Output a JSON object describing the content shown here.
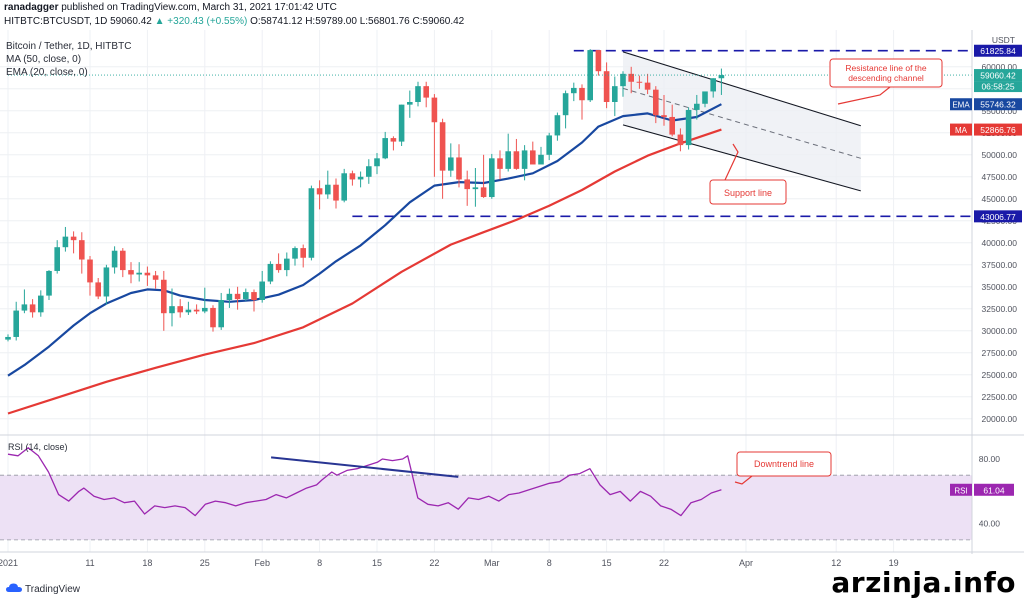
{
  "header": {
    "publisher_line_pre": "ranadagger",
    "publisher_line_post": " published on TradingView.com, March 31, 2021 17:01:42 UTC",
    "symbol": "HITBTC:BTCUSDT, 1D",
    "last": "59060.42",
    "change": "▲ +320.43 (+0.55%)",
    "open": "O:58741.12",
    "high": "H:59789.00",
    "low": "L:56801.76",
    "close": "C:59060.42"
  },
  "legend": {
    "title": "Bitcoin / Tether, 1D, HITBTC",
    "ma": "MA (50, close, 0)",
    "ema": "EMA (20, close, 0)"
  },
  "footer": {
    "logo_text": "TradingView",
    "watermark": "arzinja.info"
  },
  "colors": {
    "up": "#26a69a",
    "down": "#ef5350",
    "ema": "#1848a0",
    "ma": "#e53935",
    "hline": "#1a1aa8",
    "channel": "#131722",
    "rsi_line": "#9c27b0",
    "rsi_fill": "#ede1f5",
    "downtrend": "#283593",
    "annotation": "#e53935",
    "grid": "#eef0f4"
  },
  "chart_data": [
    {
      "type": "candlestick",
      "title": "Bitcoin / Tether, 1D, HITBTC",
      "y_axis_label": "USDT",
      "ylim": [
        18500,
        63500
      ],
      "y_ticks": [
        20000,
        22500,
        25000,
        27500,
        30000,
        32500,
        35000,
        37500,
        40000,
        42500,
        45000,
        47500,
        50000,
        52500,
        55000,
        57500,
        60000
      ],
      "x_labels": [
        "2021",
        "11",
        "18",
        "25",
        "Feb",
        "8",
        "15",
        "22",
        "Mar",
        "8",
        "15",
        "22",
        "Apr",
        "12",
        "19"
      ],
      "x_label_days": [
        0,
        10,
        17,
        24,
        31,
        38,
        45,
        52,
        59,
        66,
        73,
        80,
        90,
        101,
        108
      ],
      "ohlc": [
        [
          29000,
          29600,
          28800,
          29300
        ],
        [
          29300,
          33300,
          28900,
          32300
        ],
        [
          32300,
          34700,
          32000,
          33000
        ],
        [
          33000,
          33600,
          31500,
          32100
        ],
        [
          32100,
          34600,
          31600,
          34000
        ],
        [
          34000,
          36900,
          33500,
          36800
        ],
        [
          36800,
          40300,
          36500,
          39500
        ],
        [
          39500,
          41800,
          39000,
          40700
        ],
        [
          40700,
          41300,
          38800,
          40300
        ],
        [
          40300,
          41200,
          36500,
          38100
        ],
        [
          38100,
          38500,
          34000,
          35500
        ],
        [
          35500,
          36000,
          33600,
          33900
        ],
        [
          33900,
          37500,
          33000,
          37200
        ],
        [
          37200,
          39600,
          36500,
          39100
        ],
        [
          39100,
          39400,
          36100,
          36900
        ],
        [
          36900,
          37800,
          35400,
          36400
        ],
        [
          36400,
          37800,
          35600,
          36600
        ],
        [
          36600,
          37300,
          35100,
          36300
        ],
        [
          36300,
          36800,
          34800,
          35800
        ],
        [
          35800,
          36800,
          30000,
          32000
        ],
        [
          32000,
          34800,
          30500,
          32800
        ],
        [
          32800,
          33600,
          31500,
          32100
        ],
        [
          32100,
          33300,
          31800,
          32400
        ],
        [
          32400,
          33000,
          31900,
          32200
        ],
        [
          32200,
          34900,
          32000,
          32600
        ],
        [
          32600,
          32900,
          29900,
          30400
        ],
        [
          30400,
          34300,
          30100,
          33500
        ],
        [
          33500,
          34800,
          32600,
          34200
        ],
        [
          34200,
          35000,
          32400,
          33600
        ],
        [
          33600,
          34800,
          33400,
          34400
        ],
        [
          34400,
          34700,
          32200,
          33500
        ],
        [
          33500,
          36800,
          33200,
          35600
        ],
        [
          35600,
          37900,
          35300,
          37600
        ],
        [
          37600,
          38800,
          36600,
          36900
        ],
        [
          36900,
          38900,
          36200,
          38200
        ],
        [
          38200,
          39600,
          37400,
          39400
        ],
        [
          39400,
          39800,
          37200,
          38300
        ],
        [
          38300,
          46500,
          38000,
          46200
        ],
        [
          46200,
          47100,
          43800,
          45500
        ],
        [
          45500,
          48200,
          45000,
          46600
        ],
        [
          46600,
          47300,
          43900,
          44800
        ],
        [
          44800,
          48400,
          44600,
          47900
        ],
        [
          47900,
          48200,
          46500,
          47200
        ],
        [
          47200,
          48100,
          46300,
          47500
        ],
        [
          47500,
          49500,
          46700,
          48700
        ],
        [
          48700,
          50200,
          47800,
          49600
        ],
        [
          49600,
          52600,
          49500,
          51900
        ],
        [
          51900,
          52100,
          50500,
          51500
        ],
        [
          51500,
          55700,
          51000,
          55700
        ],
        [
          55700,
          57300,
          54200,
          56000
        ],
        [
          56000,
          58300,
          55500,
          57800
        ],
        [
          57800,
          58300,
          55400,
          56500
        ],
        [
          56500,
          56900,
          47500,
          53700
        ],
        [
          53700,
          54100,
          45000,
          48200
        ],
        [
          48200,
          51300,
          47500,
          49700
        ],
        [
          49700,
          51200,
          46300,
          47200
        ],
        [
          47200,
          48200,
          44200,
          46100
        ],
        [
          46100,
          48500,
          44100,
          46300
        ],
        [
          46300,
          50000,
          45100,
          45200
        ],
        [
          45200,
          50100,
          45000,
          49600
        ],
        [
          49600,
          50500,
          47200,
          48400
        ],
        [
          48400,
          52400,
          48100,
          50400
        ],
        [
          50400,
          51800,
          48300,
          48400
        ],
        [
          48400,
          51100,
          47100,
          50500
        ],
        [
          50500,
          51500,
          49200,
          48900
        ],
        [
          48900,
          50900,
          49200,
          50000
        ],
        [
          50000,
          52500,
          49400,
          52200
        ],
        [
          52200,
          54800,
          51600,
          54500
        ],
        [
          54500,
          57300,
          53000,
          57000
        ],
        [
          57000,
          58200,
          56100,
          57600
        ],
        [
          57600,
          58000,
          54000,
          56200
        ],
        [
          56200,
          62000,
          56000,
          61900
        ],
        [
          61900,
          61900,
          59000,
          59500
        ],
        [
          59500,
          60500,
          55300,
          56000
        ],
        [
          56000,
          58900,
          54400,
          57800
        ],
        [
          57800,
          59500,
          56600,
          59200
        ],
        [
          59200,
          60000,
          57000,
          58300
        ],
        [
          58300,
          59000,
          57500,
          58200
        ],
        [
          58200,
          59200,
          56900,
          57400
        ],
        [
          57400,
          57800,
          53600,
          54500
        ],
        [
          54500,
          56800,
          53300,
          54300
        ],
        [
          54300,
          55700,
          52100,
          52300
        ],
        [
          52300,
          53000,
          50400,
          51100
        ],
        [
          51100,
          55400,
          50600,
          55100
        ],
        [
          55100,
          56800,
          54000,
          55800
        ],
        [
          55800,
          57200,
          55400,
          57200
        ],
        [
          57200,
          58700,
          56500,
          58700
        ],
        [
          58700,
          59800,
          56800,
          59060
        ]
      ],
      "series": [
        {
          "name": "EMA",
          "last_label": "55746.32",
          "points": [
            [
              0,
              24900
            ],
            [
              2,
              26100
            ],
            [
              5,
              28200
            ],
            [
              8,
              30600
            ],
            [
              10,
              32000
            ],
            [
              12,
              33100
            ],
            [
              15,
              34300
            ],
            [
              17,
              34700
            ],
            [
              19,
              34600
            ],
            [
              21,
              34000
            ],
            [
              24,
              33500
            ],
            [
              27,
              33300
            ],
            [
              30,
              33500
            ],
            [
              33,
              34100
            ],
            [
              36,
              35200
            ],
            [
              38,
              36500
            ],
            [
              40,
              37900
            ],
            [
              43,
              39700
            ],
            [
              46,
              42000
            ],
            [
              49,
              44600
            ],
            [
              52,
              46500
            ],
            [
              55,
              46900
            ],
            [
              58,
              46800
            ],
            [
              61,
              47300
            ],
            [
              64,
              47900
            ],
            [
              67,
              49300
            ],
            [
              70,
              51400
            ],
            [
              72,
              53200
            ],
            [
              75,
              54400
            ],
            [
              78,
              54700
            ],
            [
              81,
              53900
            ],
            [
              84,
              54300
            ],
            [
              87,
              55746
            ]
          ]
        },
        {
          "name": "MA",
          "last_label": "52866.76",
          "points": [
            [
              0,
              20600
            ],
            [
              6,
              22400
            ],
            [
              12,
              24200
            ],
            [
              18,
              25800
            ],
            [
              24,
              27300
            ],
            [
              30,
              28600
            ],
            [
              36,
              30400
            ],
            [
              42,
              33100
            ],
            [
              48,
              36700
            ],
            [
              54,
              39800
            ],
            [
              58,
              41200
            ],
            [
              62,
              42600
            ],
            [
              66,
              44200
            ],
            [
              70,
              46000
            ],
            [
              74,
              48100
            ],
            [
              78,
              49900
            ],
            [
              82,
              51300
            ],
            [
              87,
              52867
            ]
          ]
        }
      ],
      "horizontal_lines": [
        {
          "value": 61825.84,
          "label": "61825.84"
        },
        {
          "value": 43006.77,
          "label": "43006.77"
        }
      ],
      "last_price_label": "59060.42",
      "last_price_time": "06:58:25",
      "annotations": [
        {
          "text": "Resistance line of the descending channel"
        },
        {
          "text": "Support line"
        }
      ]
    },
    {
      "type": "line",
      "title": "RSI (14, close)",
      "ylim": [
        25,
        93
      ],
      "y_ticks": [
        40,
        80
      ],
      "band": [
        30,
        70
      ],
      "last_label": "61.04",
      "values": [
        [
          0,
          83
        ],
        [
          2,
          82
        ],
        [
          4,
          87
        ],
        [
          6,
          82
        ],
        [
          8,
          72
        ],
        [
          10,
          58
        ],
        [
          12,
          54
        ],
        [
          14,
          60
        ],
        [
          15,
          62
        ],
        [
          17,
          57
        ],
        [
          19,
          55
        ],
        [
          21,
          56
        ],
        [
          23,
          53
        ],
        [
          25,
          54
        ],
        [
          27,
          46
        ],
        [
          29,
          51
        ],
        [
          31,
          50
        ],
        [
          33,
          51
        ],
        [
          35,
          50
        ],
        [
          37,
          45
        ],
        [
          39,
          52
        ],
        [
          41,
          54
        ],
        [
          43,
          53
        ],
        [
          45,
          51
        ],
        [
          47,
          53
        ],
        [
          49,
          54
        ],
        [
          51,
          55
        ],
        [
          53,
          58
        ],
        [
          55,
          56
        ],
        [
          57,
          59
        ],
        [
          59,
          62
        ],
        [
          61,
          64
        ],
        [
          62,
          67
        ],
        [
          64,
          72
        ],
        [
          65,
          70
        ],
        [
          67,
          73
        ],
        [
          69,
          74
        ],
        [
          71,
          76
        ],
        [
          73,
          78
        ],
        [
          74,
          80
        ],
        [
          76,
          79
        ],
        [
          78,
          80
        ],
        [
          79,
          82
        ],
        [
          81,
          56
        ],
        [
          83,
          52
        ],
        [
          85,
          51
        ],
        [
          87,
          53
        ],
        [
          89,
          49
        ],
        [
          91,
          56
        ],
        [
          93,
          55
        ],
        [
          95,
          57
        ],
        [
          97,
          54
        ],
        [
          99,
          58
        ],
        [
          101,
          59
        ],
        [
          103,
          61
        ],
        [
          105,
          63
        ],
        [
          107,
          65
        ],
        [
          109,
          66
        ],
        [
          111,
          70
        ],
        [
          113,
          71
        ],
        [
          115,
          74
        ],
        [
          117,
          64
        ],
        [
          119,
          58
        ],
        [
          121,
          60
        ],
        [
          123,
          54
        ],
        [
          125,
          60
        ],
        [
          127,
          57
        ],
        [
          129,
          51
        ],
        [
          131,
          49
        ],
        [
          133,
          45
        ],
        [
          135,
          53
        ],
        [
          137,
          55
        ],
        [
          139,
          59
        ],
        [
          141,
          61
        ]
      ],
      "downtrend_line": {
        "x": [
          52,
          89
        ],
        "y": [
          81,
          69
        ]
      },
      "annotations": [
        {
          "text": "Downtrend line"
        }
      ]
    }
  ]
}
